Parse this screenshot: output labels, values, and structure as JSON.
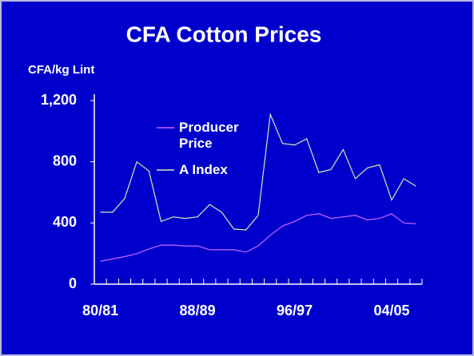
{
  "chart_data": {
    "type": "line",
    "title": "CFA Cotton Prices",
    "y_label": "CFA/kg Lint",
    "categories": [
      "80/81",
      null,
      null,
      null,
      null,
      null,
      null,
      null,
      "88/89",
      null,
      null,
      null,
      null,
      null,
      null,
      null,
      "96/97",
      null,
      null,
      null,
      null,
      null,
      null,
      null,
      "04/05",
      null,
      null
    ],
    "series": [
      {
        "name": "Producer Price",
        "color": "#cc66ff",
        "values": [
          150,
          165,
          180,
          200,
          230,
          255,
          255,
          250,
          250,
          225,
          225,
          225,
          210,
          250,
          320,
          380,
          410,
          450,
          460,
          430,
          440,
          450,
          420,
          430,
          460,
          400,
          395
        ]
      },
      {
        "name": "A Index",
        "color": "#d8e8b0",
        "values": [
          470,
          470,
          560,
          800,
          740,
          410,
          440,
          430,
          440,
          520,
          470,
          360,
          355,
          450,
          1110,
          920,
          910,
          950,
          730,
          750,
          880,
          690,
          760,
          780,
          550,
          690,
          640
        ]
      }
    ],
    "ylim": [
      0,
      1200
    ],
    "yticks": [
      0,
      400,
      800,
      {
        "value": 1200,
        "label": "1,200"
      }
    ],
    "legend": "top-left"
  }
}
